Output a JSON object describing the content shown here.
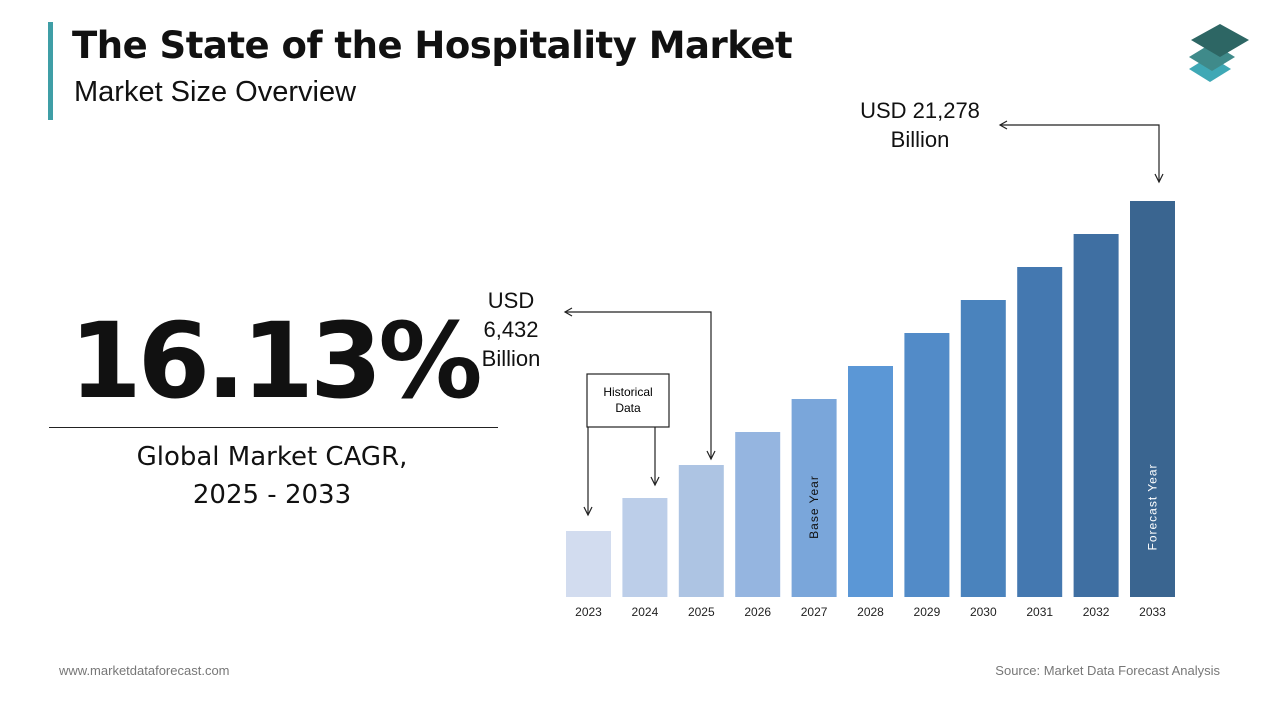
{
  "header": {
    "title": "The State of the Hospitality Market",
    "subtitle": "Market Size Overview"
  },
  "kpi": {
    "value": "16.13%",
    "label_line1": "Global Market CAGR,",
    "label_line2": "2025 - 2033"
  },
  "footer": {
    "website": "www.marketdataforecast.com",
    "source": "Source: Market Data Forecast Analysis"
  },
  "logo": {
    "colors": [
      "#2d6664",
      "#3f8a8a",
      "#3fa8b5"
    ]
  },
  "chart_data": {
    "type": "bar",
    "categories": [
      "2023",
      "2024",
      "2025",
      "2026",
      "2027",
      "2028",
      "2029",
      "2030",
      "2031",
      "2032",
      "2033"
    ],
    "values": [
      3546,
      5320,
      6432,
      8866,
      10639,
      12412,
      14186,
      15959,
      17732,
      19505,
      21278
    ],
    "unit": "USD Billion",
    "colors": [
      "#d2dcef",
      "#bccee9",
      "#adc4e3",
      "#95b5e0",
      "#7aa6da",
      "#5b97d6",
      "#528bc8",
      "#4a83bd",
      "#4478b0",
      "#3f6fa2",
      "#3a6590"
    ],
    "bar_labels": {
      "2027": "Base Year",
      "2033": "Forecast Year"
    },
    "annotations": {
      "start": {
        "line1": "USD",
        "line2": "6,432",
        "line3": "Billion"
      },
      "end": {
        "line1": "USD 21,278",
        "line2": "Billion"
      },
      "historical": {
        "line1": "Historical",
        "line2": "Data"
      }
    },
    "grid": false,
    "axes_visible": false
  }
}
